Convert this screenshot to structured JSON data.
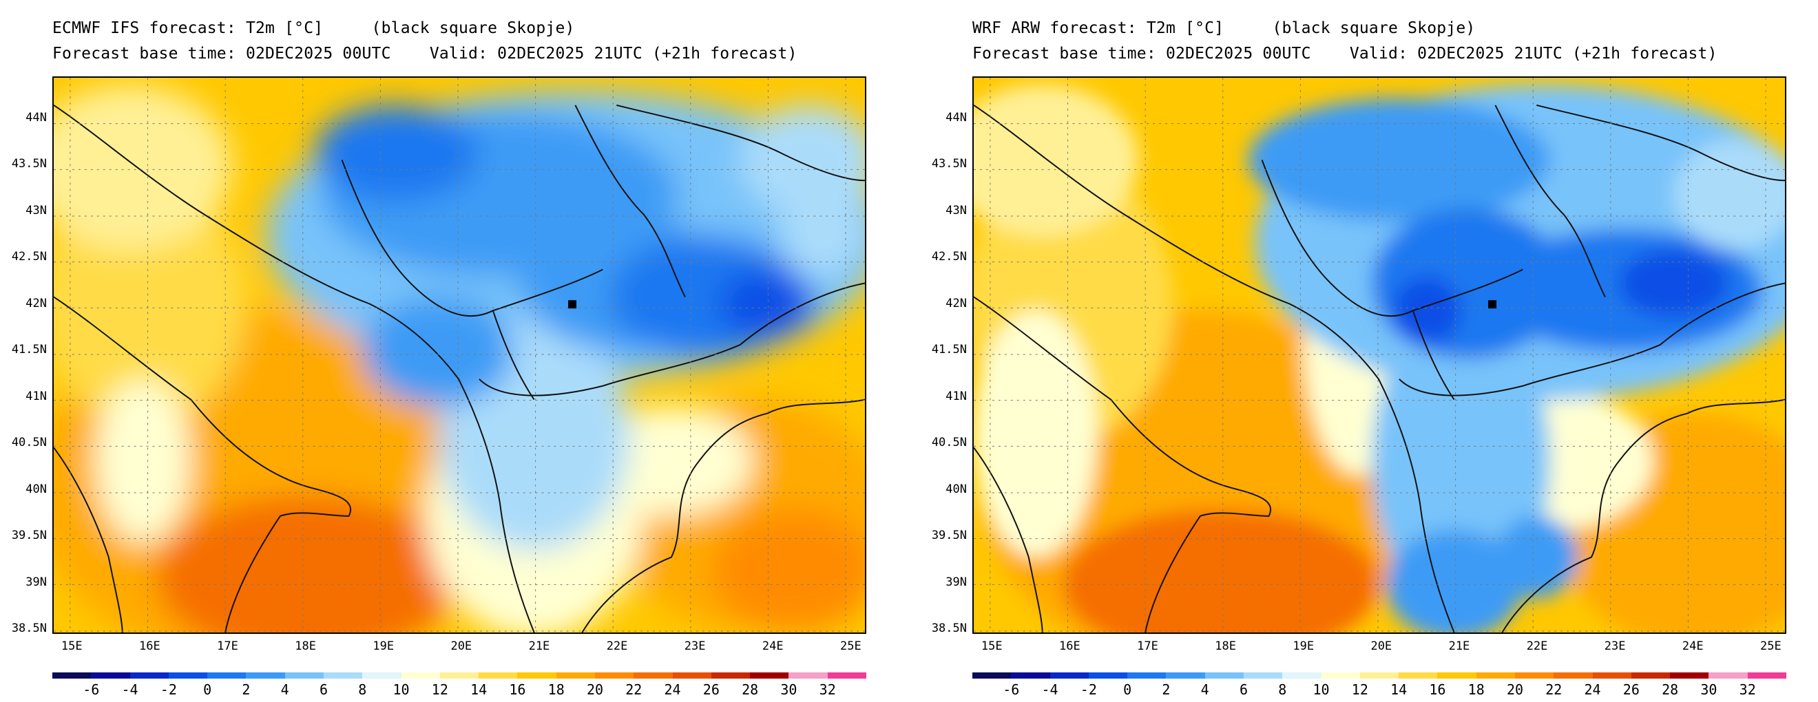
{
  "panels": [
    {
      "id": "ecmwf",
      "title": "ECMWF IFS forecast: T2m [°C]     (black square Skopje)",
      "subtitle": "Forecast base time: 02DEC2025 00UTC    Valid: 02DEC2025 21UTC (+21h forecast)"
    },
    {
      "id": "wrf",
      "title": "WRF ARW forecast: T2m [°C]     (black square Skopje)",
      "subtitle": "Forecast base time: 02DEC2025 00UTC    Valid: 02DEC2025 21UTC (+21h forecast)"
    }
  ],
  "axes": {
    "lat_labels": [
      "44N",
      "43.5N",
      "43N",
      "42.5N",
      "42N",
      "41.5N",
      "41N",
      "40.5N",
      "40N",
      "39.5N",
      "39N",
      "38.5N"
    ],
    "lat_values": [
      44,
      43.5,
      43,
      42.5,
      42,
      41.5,
      41,
      40.5,
      40,
      39.5,
      39,
      38.5
    ],
    "lon_labels": [
      "15E",
      "16E",
      "17E",
      "18E",
      "19E",
      "20E",
      "21E",
      "22E",
      "23E",
      "24E",
      "25E"
    ],
    "lon_values": [
      15,
      16,
      17,
      18,
      19,
      20,
      21,
      22,
      23,
      24,
      25
    ],
    "lon_range": [
      14.75,
      25.2
    ],
    "lat_range": [
      38.45,
      44.45
    ]
  },
  "skopje": {
    "lon": 21.43,
    "lat": 42.0
  },
  "colorbar": {
    "labels": [
      "-6",
      "-4",
      "-2",
      "0",
      "2",
      "4",
      "6",
      "8",
      "10",
      "12",
      "14",
      "16",
      "18",
      "20",
      "22",
      "24",
      "26",
      "28",
      "30",
      "32"
    ],
    "colors": [
      "#0a0a5a",
      "#0a0a96",
      "#0a28c8",
      "#0a50e6",
      "#1e78f0",
      "#3c9bf5",
      "#78c3fa",
      "#aadcfa",
      "#e1f5fa",
      "#ffffd2",
      "#fff096",
      "#ffdc46",
      "#ffc800",
      "#ffaa00",
      "#ff8c00",
      "#f56e00",
      "#e65000",
      "#c82800",
      "#a00000",
      "#f5a0c8",
      "#f03c96"
    ]
  }
}
